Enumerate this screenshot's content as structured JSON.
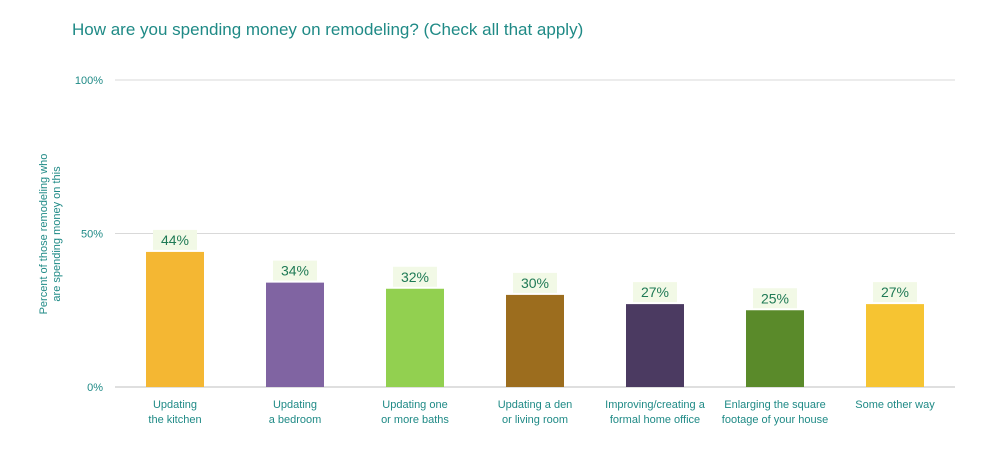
{
  "title": "How are you spending money on remodeling? (Check all that apply)",
  "chart_data": {
    "type": "bar",
    "title": "How are you spending money on remodeling? (Check all that apply)",
    "xlabel": "",
    "ylabel": [
      "Percent of those remodeling who",
      "are spending money on this"
    ],
    "ylim": [
      0,
      100
    ],
    "y_ticks": [
      0,
      50,
      100
    ],
    "y_tick_labels": [
      "0%",
      "50%",
      "100%"
    ],
    "grid": true,
    "legend": "none",
    "categories": [
      [
        "Updating",
        "the kitchen"
      ],
      [
        "Updating",
        "a bedroom"
      ],
      [
        "Updating one",
        "or more baths"
      ],
      [
        "Updating a den",
        "or living room"
      ],
      [
        "Improving/creating a",
        "formal home office"
      ],
      [
        "Enlarging the square",
        "footage of your house"
      ],
      [
        "Some other way"
      ]
    ],
    "values": [
      44,
      34,
      32,
      30,
      27,
      25,
      27
    ],
    "data_labels": [
      "44%",
      "34%",
      "32%",
      "30%",
      "27%",
      "25%",
      "27%"
    ],
    "colors": [
      "#f4b733",
      "#8064a2",
      "#92d050",
      "#9c6d1e",
      "#4b3a61",
      "#5a8a2a",
      "#f6c432"
    ],
    "data_label_bg": "#f2f9e6"
  }
}
